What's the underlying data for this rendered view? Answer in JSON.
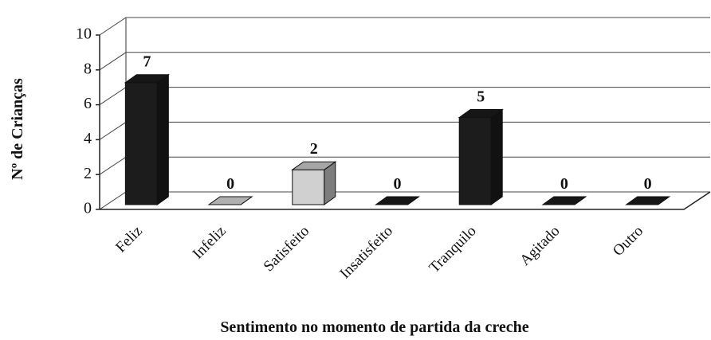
{
  "chart_data": {
    "type": "bar3d",
    "x_label": "Sentimento no momento de partida da creche",
    "y_label": "Nº de Crianças",
    "categories": [
      "Feliz",
      "Infeliz",
      "Satisfeito",
      "Insatisfeito",
      "Tranquilo",
      "Agitado",
      "Outro"
    ],
    "values": [
      7,
      0,
      2,
      0,
      5,
      0,
      0
    ],
    "colors": [
      "#1c1c1c",
      "#dcdcdc",
      "#d0d0d0",
      "#1c1c1c",
      "#1c1c1c",
      "#1c1c1c",
      "#1c1c1c"
    ],
    "ylim": [
      0,
      10
    ],
    "yticks": [
      0,
      2,
      4,
      6,
      8,
      10
    ],
    "grid": true
  }
}
